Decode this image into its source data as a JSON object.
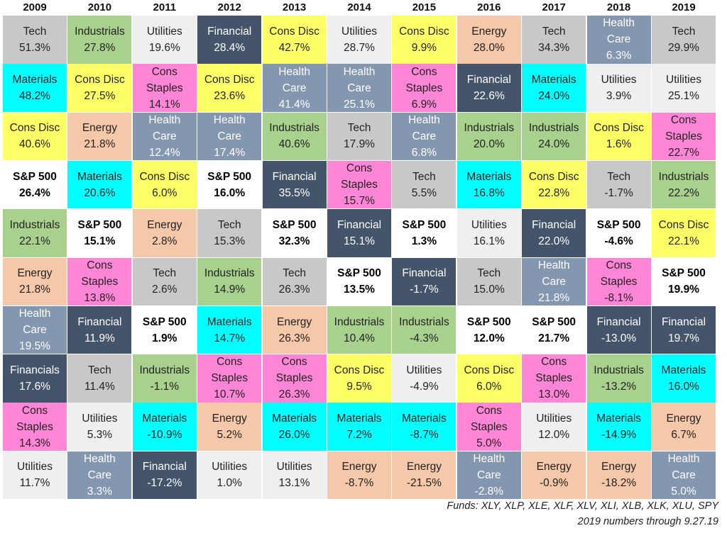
{
  "chart_data": {
    "type": "table",
    "years": [
      "2009",
      "2010",
      "2011",
      "2012",
      "2013",
      "2014",
      "2015",
      "2016",
      "2017",
      "2018",
      "2019"
    ],
    "sector_colors": {
      "Tech": "#c8c8c8",
      "Industrials": "#a9d18e",
      "Utilities": "#efefef",
      "Financial": "#44546a",
      "Financials": "#44546a",
      "Cons Disc": "#ffff66",
      "Energy": "#f4c8a8",
      "Health Care": "#8497b0",
      "Materials": "#00ffff",
      "Cons Staples": "#ff85d6",
      "S&P 500": "#ffffff"
    },
    "dark_sectors": [
      "Financial",
      "Financials",
      "Health Care"
    ],
    "columns": [
      [
        {
          "sector": "Tech",
          "value": "51.3%"
        },
        {
          "sector": "Materials",
          "value": "48.2%"
        },
        {
          "sector": "Cons Disc",
          "value": "40.6%"
        },
        {
          "sector": "S&P 500",
          "value": "26.4%"
        },
        {
          "sector": "Industrials",
          "value": "22.1%"
        },
        {
          "sector": "Energy",
          "value": "21.8%"
        },
        {
          "sector": "Health Care",
          "value": "19.5%"
        },
        {
          "sector": "Financials",
          "value": "17.6%"
        },
        {
          "sector": "Cons Staples",
          "value": "14.3%"
        },
        {
          "sector": "Utilities",
          "value": "11.7%"
        }
      ],
      [
        {
          "sector": "Industrials",
          "value": "27.8%"
        },
        {
          "sector": "Cons Disc",
          "value": "27.5%"
        },
        {
          "sector": "Energy",
          "value": "21.8%"
        },
        {
          "sector": "Materials",
          "value": "20.6%"
        },
        {
          "sector": "S&P 500",
          "value": "15.1%"
        },
        {
          "sector": "Cons Staples",
          "value": "13.8%"
        },
        {
          "sector": "Financial",
          "value": "11.9%"
        },
        {
          "sector": "Tech",
          "value": "11.4%"
        },
        {
          "sector": "Utilities",
          "value": "5.3%"
        },
        {
          "sector": "Health Care",
          "value": "3.3%"
        }
      ],
      [
        {
          "sector": "Utilities",
          "value": "19.6%"
        },
        {
          "sector": "Cons Staples",
          "value": "14.1%"
        },
        {
          "sector": "Health Care",
          "value": "12.4%"
        },
        {
          "sector": "Cons Disc",
          "value": "6.0%"
        },
        {
          "sector": "Energy",
          "value": "2.8%"
        },
        {
          "sector": "Tech",
          "value": "2.6%"
        },
        {
          "sector": "S&P 500",
          "value": "1.9%"
        },
        {
          "sector": "Industrials",
          "value": "-1.1%"
        },
        {
          "sector": "Materials",
          "value": "-10.9%"
        },
        {
          "sector": "Financial",
          "value": "-17.2%"
        }
      ],
      [
        {
          "sector": "Financial",
          "value": "28.4%"
        },
        {
          "sector": "Cons Disc",
          "value": "23.6%"
        },
        {
          "sector": "Health Care",
          "value": "17.4%"
        },
        {
          "sector": "S&P 500",
          "value": "16.0%"
        },
        {
          "sector": "Tech",
          "value": "15.3%"
        },
        {
          "sector": "Industrials",
          "value": "14.9%"
        },
        {
          "sector": "Materials",
          "value": "14.7%"
        },
        {
          "sector": "Cons Staples",
          "value": "10.7%"
        },
        {
          "sector": "Energy",
          "value": "5.2%"
        },
        {
          "sector": "Utilities",
          "value": "1.0%"
        }
      ],
      [
        {
          "sector": "Cons Disc",
          "value": "42.7%"
        },
        {
          "sector": "Health Care",
          "value": "41.4%"
        },
        {
          "sector": "Industrials",
          "value": "40.6%"
        },
        {
          "sector": "Financial",
          "value": "35.5%"
        },
        {
          "sector": "S&P 500",
          "value": "32.3%"
        },
        {
          "sector": "Tech",
          "value": "26.3%"
        },
        {
          "sector": "Energy",
          "value": "26.3%"
        },
        {
          "sector": "Cons Staples",
          "value": "26.3%"
        },
        {
          "sector": "Materials",
          "value": "26.0%"
        },
        {
          "sector": "Utilities",
          "value": "13.1%"
        }
      ],
      [
        {
          "sector": "Utilities",
          "value": "28.7%"
        },
        {
          "sector": "Health Care",
          "value": "25.1%"
        },
        {
          "sector": "Tech",
          "value": "17.9%"
        },
        {
          "sector": "Cons Staples",
          "value": "15.7%"
        },
        {
          "sector": "Financial",
          "value": "15.1%"
        },
        {
          "sector": "S&P 500",
          "value": "13.5%"
        },
        {
          "sector": "Industrials",
          "value": "10.4%"
        },
        {
          "sector": "Cons Disc",
          "value": "9.5%"
        },
        {
          "sector": "Materials",
          "value": "7.2%"
        },
        {
          "sector": "Energy",
          "value": "-8.7%"
        }
      ],
      [
        {
          "sector": "Cons Disc",
          "value": "9.9%"
        },
        {
          "sector": "Cons Staples",
          "value": "6.9%"
        },
        {
          "sector": "Health Care",
          "value": "6.8%"
        },
        {
          "sector": "Tech",
          "value": "5.5%"
        },
        {
          "sector": "S&P 500",
          "value": "1.3%"
        },
        {
          "sector": "Financial",
          "value": "-1.7%"
        },
        {
          "sector": "Industrials",
          "value": "-4.3%"
        },
        {
          "sector": "Utilities",
          "value": "-4.9%"
        },
        {
          "sector": "Materials",
          "value": "-8.7%"
        },
        {
          "sector": "Energy",
          "value": "-21.5%"
        }
      ],
      [
        {
          "sector": "Energy",
          "value": "28.0%"
        },
        {
          "sector": "Financial",
          "value": "22.6%"
        },
        {
          "sector": "Industrials",
          "value": "20.0%"
        },
        {
          "sector": "Materials",
          "value": "16.8%"
        },
        {
          "sector": "Utilities",
          "value": "16.1%"
        },
        {
          "sector": "Tech",
          "value": "15.0%"
        },
        {
          "sector": "S&P 500",
          "value": "12.0%"
        },
        {
          "sector": "Cons Disc",
          "value": "6.0%"
        },
        {
          "sector": "Cons Staples",
          "value": "5.0%"
        },
        {
          "sector": "Health Care",
          "value": "-2.8%"
        }
      ],
      [
        {
          "sector": "Tech",
          "value": "34.3%"
        },
        {
          "sector": "Materials",
          "value": "24.0%"
        },
        {
          "sector": "Industrials",
          "value": "24.0%"
        },
        {
          "sector": "Cons Disc",
          "value": "22.8%"
        },
        {
          "sector": "Financial",
          "value": "22.0%"
        },
        {
          "sector": "Health Care",
          "value": "21.8%"
        },
        {
          "sector": "S&P 500",
          "value": "21.7%"
        },
        {
          "sector": "Cons Staples",
          "value": "13.0%"
        },
        {
          "sector": "Utilities",
          "value": "12.0%"
        },
        {
          "sector": "Energy",
          "value": "-0.9%"
        }
      ],
      [
        {
          "sector": "Health Care",
          "value": "6.3%"
        },
        {
          "sector": "Utilities",
          "value": "3.9%"
        },
        {
          "sector": "Cons Disc",
          "value": "1.6%"
        },
        {
          "sector": "Tech",
          "value": "-1.7%"
        },
        {
          "sector": "S&P 500",
          "value": "-4.6%"
        },
        {
          "sector": "Cons Staples",
          "value": "-8.1%"
        },
        {
          "sector": "Financial",
          "value": "-13.0%"
        },
        {
          "sector": "Industrials",
          "value": "-13.2%"
        },
        {
          "sector": "Materials",
          "value": "-14.9%"
        },
        {
          "sector": "Energy",
          "value": "-18.2%"
        }
      ],
      [
        {
          "sector": "Tech",
          "value": "29.9%"
        },
        {
          "sector": "Utilities",
          "value": "25.1%"
        },
        {
          "sector": "Cons Staples",
          "value": "22.7%"
        },
        {
          "sector": "Industrials",
          "value": "22.2%"
        },
        {
          "sector": "Cons Disc",
          "value": "22.1%"
        },
        {
          "sector": "S&P 500",
          "value": "19.9%"
        },
        {
          "sector": "Financial",
          "value": "19.7%"
        },
        {
          "sector": "Materials",
          "value": "16.0%"
        },
        {
          "sector": "Energy",
          "value": "6.7%"
        },
        {
          "sector": "Health Care",
          "value": "5.0%"
        }
      ]
    ]
  },
  "footnote": {
    "funds": "Funds:  XLY, XLP, XLE, XLF, XLV, XLI, XLB, XLK, XLU, SPY",
    "through": "2019 numbers through 9.27.19"
  }
}
